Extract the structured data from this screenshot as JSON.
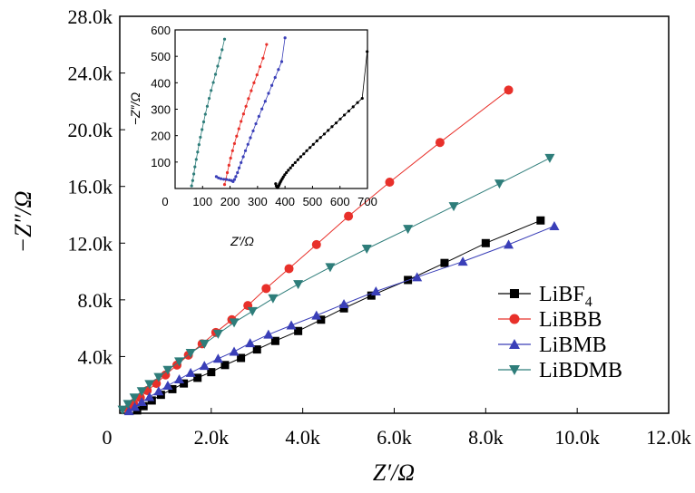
{
  "chart_data": [
    {
      "type": "scatter",
      "title": "",
      "xlabel": "Z′/Ω",
      "ylabel": "−Z″/Ω",
      "xlim": [
        0,
        12000
      ],
      "ylim": [
        0,
        28000
      ],
      "x_ticks": [
        0,
        2000,
        4000,
        6000,
        8000,
        10000,
        12000
      ],
      "x_tick_labels": [
        "0",
        "2.0k",
        "4.0k",
        "6.0k",
        "8.0k",
        "10.0k",
        "12.0k"
      ],
      "y_ticks": [
        4000,
        8000,
        12000,
        16000,
        20000,
        24000,
        28000
      ],
      "y_tick_labels": [
        "4.0k",
        "8.0k",
        "12.0k",
        "16.0k",
        "20.0k",
        "24.0k",
        "28.0k"
      ],
      "legend_position": "right",
      "series": [
        {
          "name": "LiBF",
          "name_sub": "4",
          "color": "#000000",
          "marker": "square",
          "x": [
            380,
            520,
            700,
            900,
            1150,
            1400,
            1700,
            2000,
            2300,
            2650,
            3000,
            3400,
            3900,
            4400,
            4900,
            5500,
            6300,
            7100,
            8000,
            9200
          ],
          "y": [
            200,
            500,
            900,
            1300,
            1700,
            2100,
            2500,
            2900,
            3400,
            3900,
            4500,
            5100,
            5800,
            6600,
            7400,
            8300,
            9400,
            10600,
            12000,
            13600
          ]
        },
        {
          "name": "LiBBB",
          "color": "#e8302a",
          "marker": "circle",
          "x": [
            180,
            300,
            450,
            600,
            800,
            1000,
            1250,
            1500,
            1800,
            2100,
            2450,
            2800,
            3200,
            3700,
            4300,
            5000,
            5900,
            7000,
            8500
          ],
          "y": [
            300,
            700,
            1100,
            1600,
            2100,
            2700,
            3400,
            4100,
            4900,
            5700,
            6600,
            7600,
            8800,
            10200,
            11900,
            13900,
            16300,
            19100,
            22800
          ]
        },
        {
          "name": "LiBMB",
          "color": "#3a3fb8",
          "marker": "triangle-up",
          "x": [
            200,
            330,
            480,
            650,
            850,
            1050,
            1300,
            1550,
            1850,
            2150,
            2500,
            2850,
            3250,
            3750,
            4300,
            4900,
            5600,
            6500,
            7500,
            8500,
            9500
          ],
          "y": [
            150,
            450,
            800,
            1150,
            1550,
            1950,
            2400,
            2850,
            3350,
            3850,
            4350,
            4950,
            5550,
            6200,
            6900,
            7700,
            8600,
            9600,
            10700,
            11900,
            13200
          ]
        },
        {
          "name": "LiBDMB",
          "color": "#2e7d7a",
          "marker": "triangle-down",
          "x": [
            60,
            180,
            320,
            480,
            650,
            850,
            1050,
            1300,
            1550,
            1850,
            2150,
            2500,
            2900,
            3350,
            3900,
            4600,
            5400,
            6300,
            7300,
            8300,
            9400
          ],
          "y": [
            250,
            650,
            1100,
            1550,
            2050,
            2550,
            3050,
            3650,
            4250,
            4900,
            5600,
            6400,
            7200,
            8100,
            9100,
            10300,
            11600,
            13000,
            14600,
            16200,
            18000
          ]
        }
      ]
    },
    {
      "type": "scatter",
      "title": "",
      "xlabel": "Z′/Ω",
      "ylabel": "−Z″/Ω",
      "xlim": [
        0,
        700
      ],
      "ylim": [
        0,
        600
      ],
      "x_ticks": [
        0,
        100,
        200,
        300,
        400,
        500,
        600,
        700
      ],
      "x_tick_labels": [
        "0",
        "100",
        "200",
        "300",
        "400",
        "500",
        "600",
        "700"
      ],
      "y_ticks": [
        100,
        200,
        300,
        400,
        500,
        600
      ],
      "y_tick_labels": [
        "100",
        "200",
        "300",
        "400",
        "500",
        "600"
      ],
      "series": [
        {
          "name": "LiBF4",
          "color": "#000000",
          "marker": "dot",
          "x": [
            366,
            368,
            371,
            373,
            375,
            378,
            380,
            383,
            386,
            390,
            394,
            399,
            405,
            412,
            420,
            428,
            437,
            447,
            457,
            468,
            479,
            491,
            503,
            516,
            529,
            543,
            557,
            571,
            586,
            601,
            616,
            632,
            648,
            664,
            681,
            699
          ],
          "y": [
            18,
            10,
            5,
            3,
            7,
            12,
            18,
            24,
            30,
            37,
            44,
            52,
            60,
            69,
            78,
            88,
            98,
            109,
            120,
            131,
            143,
            155,
            167,
            180,
            193,
            206,
            220,
            234,
            248,
            263,
            278,
            293,
            309,
            325,
            341,
            518
          ]
        },
        {
          "name": "LiBBB",
          "color": "#e8302a",
          "marker": "dot",
          "x": [
            180,
            185,
            190,
            196,
            202,
            209,
            216,
            224,
            232,
            240,
            249,
            258,
            267,
            277,
            287,
            298,
            309,
            320,
            333
          ],
          "y": [
            15,
            35,
            60,
            88,
            115,
            143,
            170,
            198,
            226,
            254,
            282,
            311,
            340,
            370,
            400,
            430,
            461,
            493,
            545
          ]
        },
        {
          "name": "LiBMB",
          "color": "#3a3fb8",
          "marker": "dot",
          "x": [
            150,
            158,
            167,
            177,
            187,
            197,
            205,
            211,
            216,
            221,
            227,
            233,
            240,
            248,
            256,
            265,
            274,
            284,
            294,
            305,
            316,
            328,
            340,
            352,
            364,
            376,
            388,
            400
          ],
          "y": [
            45,
            40,
            37,
            35,
            34,
            32,
            30,
            26,
            34,
            45,
            60,
            78,
            98,
            120,
            143,
            167,
            192,
            218,
            245,
            273,
            301,
            330,
            360,
            390,
            420,
            450,
            480,
            570
          ]
        },
        {
          "name": "LiBDMB",
          "color": "#2e7d7a",
          "marker": "dot",
          "x": [
            60,
            64,
            68,
            72,
            77,
            82,
            87,
            92,
            98,
            104,
            110,
            117,
            124,
            131,
            139,
            147,
            155,
            163,
            171,
            180
          ],
          "y": [
            10,
            30,
            55,
            82,
            110,
            138,
            166,
            194,
            223,
            252,
            281,
            311,
            341,
            371,
            401,
            432,
            463,
            494,
            525,
            565
          ]
        }
      ]
    }
  ]
}
